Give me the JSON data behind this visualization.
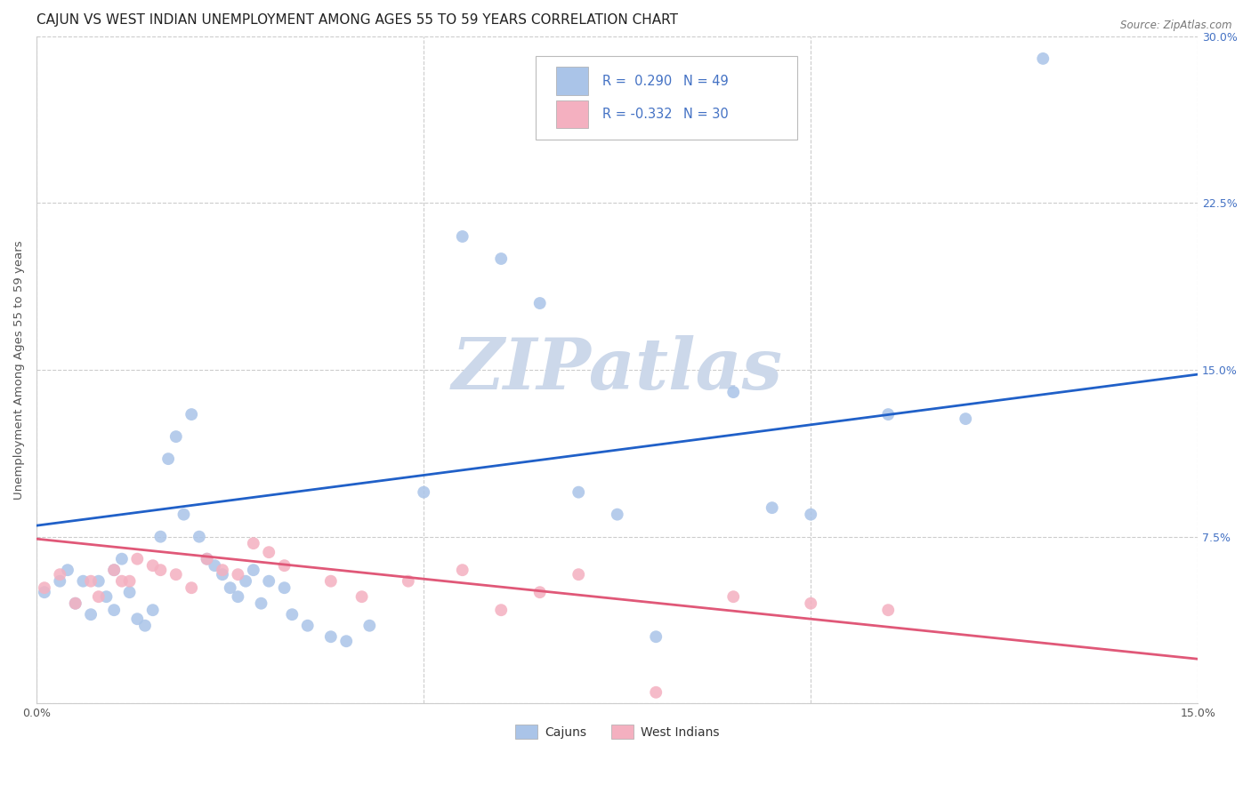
{
  "title": "CAJUN VS WEST INDIAN UNEMPLOYMENT AMONG AGES 55 TO 59 YEARS CORRELATION CHART",
  "source": "Source: ZipAtlas.com",
  "ylabel": "Unemployment Among Ages 55 to 59 years",
  "xlim": [
    0.0,
    0.15
  ],
  "ylim": [
    0.0,
    0.3
  ],
  "cajun_color": "#aac4e8",
  "west_indian_color": "#f4b0c0",
  "cajun_line_color": "#2060c8",
  "west_indian_line_color": "#e05878",
  "legend_text_color": "#4472c4",
  "background_color": "#ffffff",
  "grid_color": "#cccccc",
  "watermark_color": "#ccd8ea",
  "title_fontsize": 11,
  "axis_label_fontsize": 9.5,
  "tick_fontsize": 9,
  "marker_size": 100,
  "cajun_x": [
    0.001,
    0.003,
    0.004,
    0.005,
    0.006,
    0.007,
    0.008,
    0.009,
    0.01,
    0.01,
    0.011,
    0.012,
    0.013,
    0.014,
    0.015,
    0.016,
    0.017,
    0.018,
    0.019,
    0.02,
    0.021,
    0.022,
    0.023,
    0.024,
    0.025,
    0.026,
    0.027,
    0.028,
    0.029,
    0.03,
    0.032,
    0.033,
    0.035,
    0.038,
    0.04,
    0.043,
    0.05,
    0.055,
    0.06,
    0.065,
    0.07,
    0.075,
    0.08,
    0.09,
    0.095,
    0.1,
    0.11,
    0.12,
    0.13
  ],
  "cajun_y": [
    0.05,
    0.055,
    0.06,
    0.045,
    0.055,
    0.04,
    0.055,
    0.048,
    0.06,
    0.042,
    0.065,
    0.05,
    0.038,
    0.035,
    0.042,
    0.075,
    0.11,
    0.12,
    0.085,
    0.13,
    0.075,
    0.065,
    0.062,
    0.058,
    0.052,
    0.048,
    0.055,
    0.06,
    0.045,
    0.055,
    0.052,
    0.04,
    0.035,
    0.03,
    0.028,
    0.035,
    0.095,
    0.21,
    0.2,
    0.18,
    0.095,
    0.085,
    0.03,
    0.14,
    0.088,
    0.085,
    0.13,
    0.128,
    0.29
  ],
  "west_indian_x": [
    0.001,
    0.003,
    0.005,
    0.007,
    0.008,
    0.01,
    0.011,
    0.012,
    0.013,
    0.015,
    0.016,
    0.018,
    0.02,
    0.022,
    0.024,
    0.026,
    0.028,
    0.03,
    0.032,
    0.038,
    0.042,
    0.048,
    0.055,
    0.06,
    0.065,
    0.07,
    0.08,
    0.09,
    0.1,
    0.11
  ],
  "west_indian_y": [
    0.052,
    0.058,
    0.045,
    0.055,
    0.048,
    0.06,
    0.055,
    0.055,
    0.065,
    0.062,
    0.06,
    0.058,
    0.052,
    0.065,
    0.06,
    0.058,
    0.072,
    0.068,
    0.062,
    0.055,
    0.048,
    0.055,
    0.06,
    0.042,
    0.05,
    0.058,
    0.005,
    0.048,
    0.045,
    0.042
  ],
  "cajun_trend_x0": 0.0,
  "cajun_trend_y0": 0.08,
  "cajun_trend_x1": 0.15,
  "cajun_trend_y1": 0.148,
  "west_trend_x0": 0.0,
  "west_trend_y0": 0.074,
  "west_trend_x1": 0.15,
  "west_trend_y1": 0.02
}
